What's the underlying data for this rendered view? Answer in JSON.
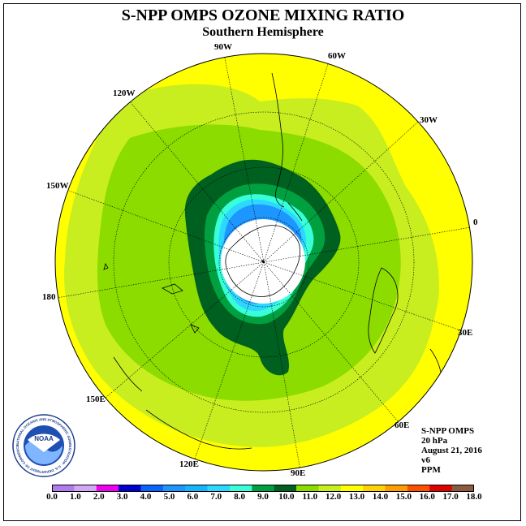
{
  "title": "S-NPP OMPS OZONE MIXING RATIO",
  "subtitle": "Southern Hemisphere",
  "longitude_labels": [
    "90W",
    "60W",
    "30W",
    "0",
    "30E",
    "60E",
    "90E",
    "120E",
    "150E",
    "180",
    "150W",
    "120W"
  ],
  "info": {
    "instrument": "S-NPP OMPS",
    "pressure": "20 hPa",
    "date": "August 21, 2016",
    "version": "v6",
    "units": "PPM"
  },
  "colorbar": {
    "ticks": [
      "0.0",
      "1.0",
      "2.0",
      "3.0",
      "4.0",
      "5.0",
      "6.0",
      "7.0",
      "8.0",
      "9.0",
      "10.0",
      "11.0",
      "12.0",
      "13.0",
      "14.0",
      "15.0",
      "16.0",
      "17.0",
      "18.0"
    ],
    "colors": [
      "#b07cf0",
      "#d2a8f5",
      "#f000f0",
      "#0000d0",
      "#0a64ff",
      "#1e96ff",
      "#14b4ff",
      "#2cd8ff",
      "#38ffd8",
      "#00a040",
      "#006020",
      "#8cdc00",
      "#c8ee20",
      "#ffff00",
      "#ffd200",
      "#ff9c00",
      "#ff5000",
      "#e00000",
      "#8c5a40"
    ]
  },
  "logo": {
    "text": "NOAA",
    "ring_text": "NATIONAL OCEANIC AND ATMOSPHERIC ADMINISTRATION · U.S. DEPARTMENT OF COMMERCE"
  }
}
